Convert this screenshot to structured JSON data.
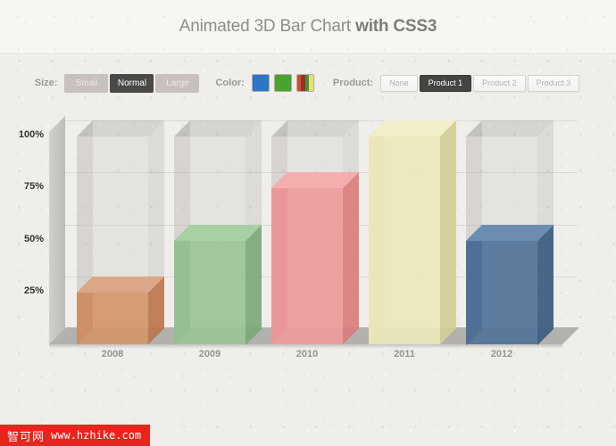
{
  "header": {
    "title_regular": "Animated 3D Bar Chart",
    "title_bold": "with CSS3"
  },
  "controls": {
    "size": {
      "label": "Size:",
      "options": [
        {
          "label": "Small",
          "selected": false
        },
        {
          "label": "Normal",
          "selected": true
        },
        {
          "label": "Large",
          "selected": false
        }
      ]
    },
    "color": {
      "label": "Color:",
      "swatches": [
        {
          "name": "blue",
          "selected": false,
          "colors": [
            "#2e74c8"
          ]
        },
        {
          "name": "green",
          "selected": false,
          "colors": [
            "#4aa32c"
          ]
        },
        {
          "name": "multicolor",
          "selected": true,
          "colors": [
            "#c9512f",
            "#9e2d28",
            "#3f9440",
            "#e9e06c"
          ]
        }
      ]
    },
    "product": {
      "label": "Product:",
      "options": [
        {
          "label": "None",
          "selected": false
        },
        {
          "label": "Product 1",
          "selected": true
        },
        {
          "label": "Product 2",
          "selected": false
        },
        {
          "label": "Product 3",
          "selected": false
        }
      ]
    }
  },
  "chart_data": {
    "type": "bar",
    "title": "Animated 3D Bar Chart with CSS3",
    "xlabel": "",
    "ylabel": "",
    "categories": [
      "2008",
      "2009",
      "2010",
      "2011",
      "2012"
    ],
    "values": [
      25,
      50,
      75,
      100,
      50
    ],
    "unit": "%",
    "ylim": [
      0,
      100
    ],
    "y_ticks": [
      100,
      75,
      50,
      25
    ],
    "y_tick_labels": [
      "100%",
      "75%",
      "50%",
      "25%"
    ],
    "grid": true,
    "legend": false,
    "ghost_style": {
      "front": "rgba(205,203,199,0.30)",
      "top": "rgba(60,56,52,0.14)",
      "side_right": "rgba(60,56,52,0.10)",
      "side_left": "rgba(60,56,52,0.11)"
    },
    "bar_styles": [
      {
        "name": "orange",
        "front": "rgba(211,146,104,0.88)",
        "top": "#dca787",
        "side_right": "rgba(188,117,75,0.9)",
        "side_left": "rgba(176,106,64,0.75)"
      },
      {
        "name": "green",
        "front": "rgba(152,194,149,0.88)",
        "top": "#a9cfa4",
        "side_right": "rgba(124,168,121,0.9)",
        "side_left": "rgba(115,160,113,0.75)"
      },
      {
        "name": "red",
        "front": "rgba(238,152,152,0.88)",
        "top": "#f4aeae",
        "side_right": "rgba(219,125,125,0.9)",
        "side_left": "rgba(210,118,118,0.75)"
      },
      {
        "name": "yellow",
        "front": "rgba(237,233,186,0.90)",
        "top": "#f2efcb",
        "side_right": "rgba(213,207,150,0.9)",
        "side_left": "rgba(206,200,140,0.78)"
      },
      {
        "name": "blue",
        "front": "rgba(79,113,151,0.90)",
        "top": "#6b8db1",
        "side_right": "rgba(60,92,130,0.92)",
        "side_left": "rgba(55,86,122,0.82)"
      }
    ]
  },
  "watermark": {
    "site_name": "智可网",
    "url": "www.hzhike.com",
    "bg_color": "#e8251c"
  }
}
